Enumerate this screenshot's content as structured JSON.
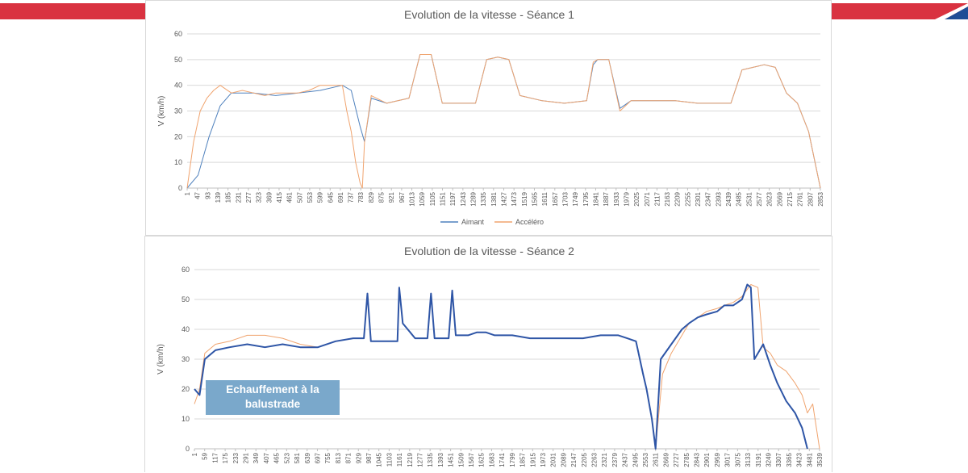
{
  "colors": {
    "aimant_s1": "#4f81bd",
    "accelero": "#f0a46f",
    "aimant_s2": "#2e55a6",
    "banner_red": "#d93240",
    "banner_blue": "#1f4e96",
    "annotation_bg": "#7aa8cb"
  },
  "annotation": {
    "line1": "Echauffement à la",
    "line2": "balustrade"
  },
  "chart_data": [
    {
      "type": "line",
      "title": "Evolution de la vitesse - Séance 1",
      "xlabel": "",
      "ylabel": "V (km/h)",
      "ylim": [
        0,
        60
      ],
      "yticks": [
        0,
        10,
        20,
        30,
        40,
        50,
        60
      ],
      "xlim": [
        1,
        2853
      ],
      "xticks": [
        1,
        47,
        93,
        139,
        185,
        231,
        277,
        323,
        369,
        415,
        461,
        507,
        553,
        599,
        645,
        691,
        737,
        783,
        829,
        875,
        921,
        967,
        1013,
        1059,
        1105,
        1151,
        1197,
        1243,
        1289,
        1335,
        1381,
        1427,
        1473,
        1519,
        1565,
        1611,
        1657,
        1703,
        1749,
        1795,
        1841,
        1887,
        1933,
        1979,
        2025,
        2071,
        2117,
        2163,
        2209,
        2255,
        2301,
        2347,
        2393,
        2439,
        2485,
        2531,
        2577,
        2623,
        2669,
        2715,
        2761,
        2807,
        2853
      ],
      "grid": true,
      "legend": "bottom",
      "series": [
        {
          "name": "Aimant",
          "x": [
            1,
            50,
            100,
            150,
            200,
            300,
            400,
            500,
            600,
            700,
            740,
            780,
            800,
            830,
            900,
            1000,
            1050,
            1100,
            1150,
            1200,
            1300,
            1350,
            1400,
            1450,
            1500,
            1600,
            1700,
            1800,
            1830,
            1850,
            1900,
            1950,
            2000,
            2100,
            2200,
            2300,
            2400,
            2450,
            2500,
            2550,
            2600,
            2650,
            2700,
            2750,
            2800,
            2853
          ],
          "y": [
            0,
            5,
            20,
            32,
            37,
            37,
            36,
            37,
            38,
            40,
            38,
            24,
            18,
            35,
            33,
            35,
            52,
            52,
            33,
            33,
            33,
            50,
            51,
            50,
            36,
            34,
            33,
            34,
            48,
            50,
            50,
            31,
            34,
            34,
            34,
            33,
            33,
            33,
            46,
            47,
            48,
            47,
            37,
            33,
            22,
            0
          ]
        },
        {
          "name": "Accéléro",
          "x": [
            1,
            30,
            60,
            90,
            120,
            150,
            200,
            250,
            300,
            350,
            400,
            450,
            500,
            550,
            600,
            650,
            700,
            720,
            740,
            760,
            780,
            790,
            800,
            830,
            900,
            1000,
            1050,
            1100,
            1150,
            1200,
            1300,
            1350,
            1400,
            1450,
            1500,
            1600,
            1700,
            1800,
            1830,
            1850,
            1900,
            1950,
            2000,
            2100,
            2200,
            2300,
            2400,
            2450,
            2500,
            2550,
            2600,
            2650,
            2700,
            2750,
            2800,
            2853
          ],
          "y": [
            0,
            18,
            30,
            35,
            38,
            40,
            37,
            38,
            37,
            36,
            37,
            37,
            37,
            38,
            40,
            40,
            40,
            30,
            22,
            10,
            2,
            0,
            18,
            36,
            33,
            35,
            52,
            52,
            33,
            33,
            33,
            50,
            51,
            50,
            36,
            34,
            33,
            34,
            49,
            50,
            50,
            30,
            34,
            34,
            34,
            33,
            33,
            33,
            46,
            47,
            48,
            47,
            37,
            33,
            22,
            0
          ]
        }
      ]
    },
    {
      "type": "line",
      "title": "Evolution de la vitesse - Séance 2",
      "xlabel": "",
      "ylabel": "V (km/h)",
      "ylim": [
        0,
        60
      ],
      "yticks": [
        0,
        10,
        20,
        30,
        40,
        50,
        60
      ],
      "xlim": [
        1,
        3539
      ],
      "xticks": [
        1,
        59,
        117,
        175,
        233,
        291,
        349,
        407,
        465,
        523,
        581,
        639,
        697,
        755,
        813,
        871,
        929,
        987,
        1045,
        1103,
        1161,
        1219,
        1277,
        1335,
        1393,
        1451,
        1509,
        1567,
        1625,
        1683,
        1741,
        1799,
        1857,
        1915,
        1973,
        2031,
        2089,
        2147,
        2205,
        2263,
        2321,
        2379,
        2437,
        2495,
        2553,
        2611,
        2669,
        2727,
        2785,
        2843,
        2901,
        2959,
        3017,
        3075,
        3133,
        3191,
        3249,
        3307,
        3365,
        3423,
        3481,
        3539
      ],
      "grid": true,
      "legend": "none",
      "series": [
        {
          "name": "Aimant",
          "x": [
            1,
            30,
            60,
            120,
            200,
            300,
            400,
            500,
            600,
            700,
            800,
            900,
            960,
            980,
            1000,
            1050,
            1100,
            1150,
            1160,
            1180,
            1250,
            1320,
            1340,
            1360,
            1400,
            1440,
            1460,
            1480,
            1550,
            1600,
            1650,
            1700,
            1800,
            1900,
            2000,
            2100,
            2200,
            2300,
            2400,
            2450,
            2500,
            2540,
            2560,
            2590,
            2611,
            2640,
            2700,
            2760,
            2800,
            2850,
            2900,
            2960,
            3000,
            3050,
            3100,
            3130,
            3150,
            3170,
            3190,
            3220,
            3260,
            3300,
            3350,
            3400,
            3440,
            3470
          ],
          "y": [
            20,
            18,
            30,
            33,
            34,
            35,
            34,
            35,
            34,
            34,
            36,
            37,
            37,
            52,
            36,
            36,
            36,
            36,
            54,
            42,
            37,
            37,
            52,
            37,
            37,
            37,
            53,
            38,
            38,
            39,
            39,
            38,
            38,
            37,
            37,
            37,
            37,
            38,
            38,
            37,
            36,
            25,
            20,
            10,
            0,
            30,
            35,
            40,
            42,
            44,
            45,
            46,
            48,
            48,
            50,
            55,
            54,
            30,
            32,
            35,
            28,
            22,
            16,
            12,
            7,
            0
          ]
        },
        {
          "name": "Accéléro",
          "x": [
            1,
            30,
            60,
            120,
            200,
            300,
            400,
            500,
            600,
            700,
            800,
            900,
            960,
            980,
            1000,
            1050,
            1100,
            1150,
            1160,
            1180,
            1250,
            1320,
            1340,
            1360,
            1400,
            1440,
            1460,
            1480,
            1550,
            1600,
            1650,
            1700,
            1800,
            1900,
            2000,
            2100,
            2200,
            2300,
            2400,
            2450,
            2500,
            2540,
            2560,
            2590,
            2611,
            2650,
            2700,
            2760,
            2800,
            2850,
            2900,
            2960,
            3000,
            3050,
            3100,
            3150,
            3190,
            3220,
            3260,
            3300,
            3350,
            3400,
            3440,
            3470,
            3500,
            3539
          ],
          "y": [
            15,
            20,
            32,
            35,
            36,
            38,
            38,
            37,
            35,
            34,
            36,
            37,
            37,
            51,
            36,
            36,
            36,
            36,
            54,
            42,
            37,
            37,
            51,
            37,
            37,
            37,
            52,
            38,
            38,
            39,
            39,
            38,
            38,
            37,
            37,
            37,
            37,
            38,
            38,
            37,
            36,
            25,
            20,
            10,
            0,
            25,
            32,
            38,
            42,
            44,
            46,
            47,
            48,
            49,
            51,
            55,
            54,
            34,
            32,
            28,
            26,
            22,
            18,
            12,
            15,
            0
          ]
        }
      ]
    }
  ]
}
